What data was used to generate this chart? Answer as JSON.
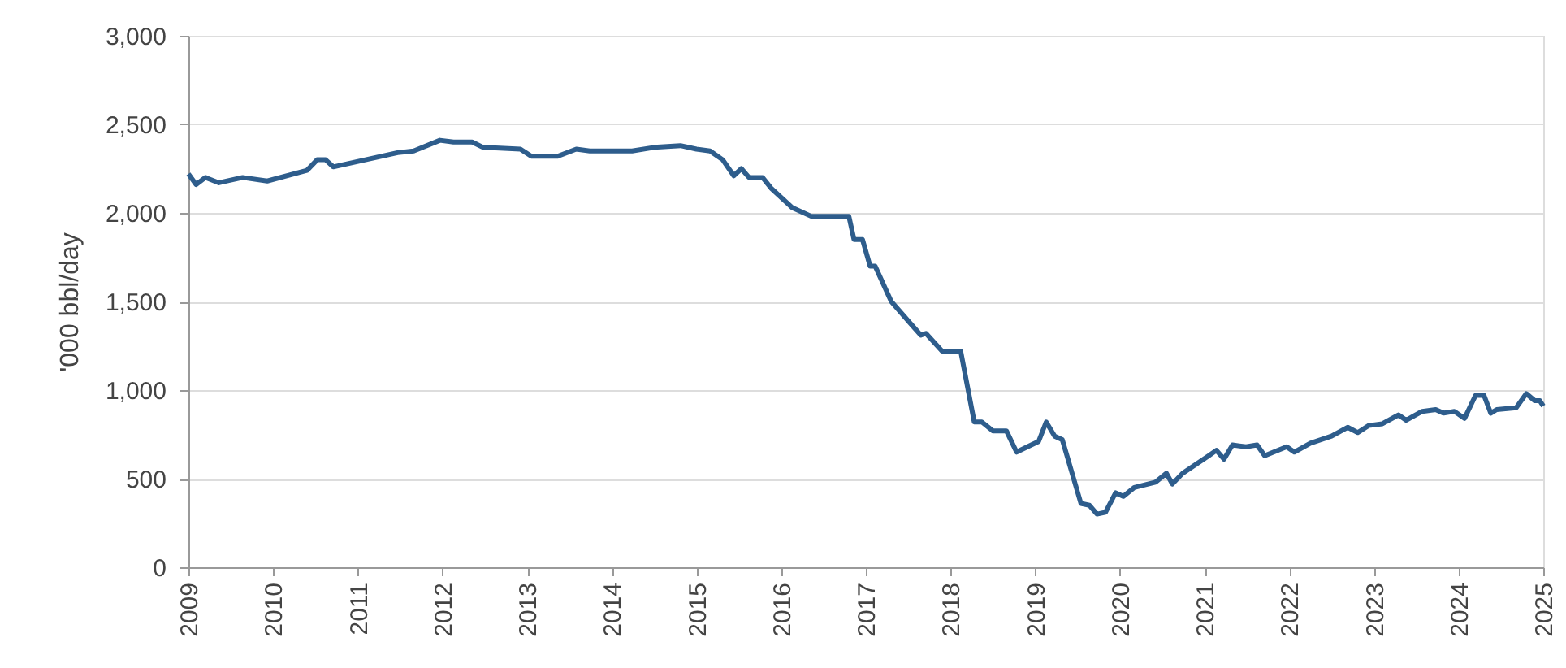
{
  "chart_data": {
    "type": "line",
    "ylabel": "'000 bbl/day",
    "xlim": [
      2009,
      2025
    ],
    "xticks": [
      2009,
      2010,
      2011,
      2012,
      2013,
      2014,
      2015,
      2016,
      2017,
      2018,
      2019,
      2020,
      2021,
      2022,
      2023,
      2024,
      2025
    ],
    "ylim": [
      0,
      3000
    ],
    "yticks": [
      0,
      500,
      {
        "value": 1000,
        "label": "1,000"
      },
      {
        "value": 1500,
        "label": "1,500"
      },
      {
        "value": 2000,
        "label": "2,000"
      },
      {
        "value": 2500,
        "label": "2,500"
      },
      {
        "value": 3000,
        "label": "3,000"
      }
    ],
    "grid": "y",
    "line_style": "solid",
    "marker": "none",
    "series": [
      {
        "color": "#2e5d8c",
        "x": [
          2009.0,
          2009.09,
          2009.2,
          2009.36,
          2009.64,
          2009.93,
          2010.4,
          2010.52,
          2010.62,
          2010.71,
          2011.09,
          2011.47,
          2011.66,
          2011.97,
          2012.13,
          2012.35,
          2012.48,
          2012.92,
          2013.05,
          2013.36,
          2013.58,
          2013.74,
          2014.24,
          2014.5,
          2014.81,
          2015.0,
          2015.16,
          2015.31,
          2015.44,
          2015.53,
          2015.62,
          2015.78,
          2015.88,
          2016.13,
          2016.36,
          2016.8,
          2016.86,
          2016.96,
          2017.05,
          2017.11,
          2017.3,
          2017.52,
          2017.65,
          2017.71,
          2017.9,
          2018.12,
          2018.28,
          2018.37,
          2018.5,
          2018.66,
          2018.78,
          2019.04,
          2019.13,
          2019.23,
          2019.32,
          2019.54,
          2019.64,
          2019.73,
          2019.83,
          2019.95,
          2020.04,
          2020.17,
          2020.42,
          2020.55,
          2020.62,
          2020.74,
          2021.05,
          2021.14,
          2021.23,
          2021.33,
          2021.49,
          2021.62,
          2021.71,
          2021.97,
          2022.06,
          2022.25,
          2022.5,
          2022.69,
          2022.81,
          2022.94,
          2023.1,
          2023.29,
          2023.38,
          2023.57,
          2023.73,
          2023.82,
          2023.95,
          2024.07,
          2024.2,
          2024.3,
          2024.38,
          2024.45,
          2024.68,
          2024.8,
          2024.9,
          2024.96,
          2025.0
        ],
        "values": [
          2220,
          2160,
          2200,
          2170,
          2200,
          2180,
          2240,
          2300,
          2300,
          2260,
          2300,
          2340,
          2350,
          2410,
          2400,
          2400,
          2370,
          2360,
          2320,
          2320,
          2360,
          2350,
          2350,
          2370,
          2380,
          2360,
          2350,
          2300,
          2210,
          2250,
          2200,
          2200,
          2140,
          2030,
          1980,
          1980,
          1850,
          1850,
          1700,
          1700,
          1500,
          1380,
          1310,
          1320,
          1220,
          1220,
          820,
          820,
          770,
          770,
          650,
          710,
          820,
          740,
          720,
          360,
          350,
          300,
          310,
          420,
          400,
          450,
          480,
          530,
          470,
          530,
          630,
          660,
          610,
          690,
          680,
          690,
          630,
          680,
          650,
          700,
          740,
          790,
          760,
          800,
          810,
          860,
          830,
          880,
          890,
          870,
          880,
          840,
          970,
          970,
          870,
          890,
          900,
          980,
          940,
          940,
          910
        ]
      }
    ]
  }
}
